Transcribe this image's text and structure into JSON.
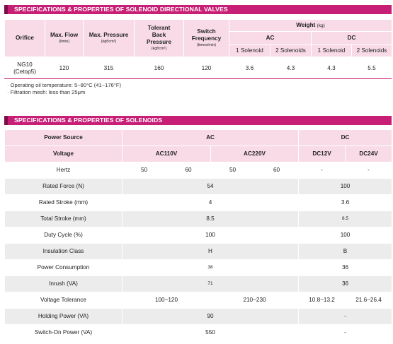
{
  "section1": {
    "title": "SPECIFICATIONS & PROPERTIES OF SOLENOID DIRECTIONAL VALVES",
    "headers": {
      "orifice": "Orifice",
      "max_flow": "Max. Flow",
      "max_flow_unit": "(l/min)",
      "max_pressure": "Max. Pressure",
      "max_pressure_unit": "(kgf/cm²)",
      "tolerant_back_pressure": "Tolerant Back Pressure",
      "tolerant_back_pressure_unit": "(kgf/cm²)",
      "switch_frequency": "Switch Frequency",
      "switch_frequency_unit": "(times/min)",
      "weight": "Weight",
      "weight_unit": "(kg)",
      "ac": "AC",
      "dc": "DC",
      "one_solenoid": "1 Solenoid",
      "two_solenoids": "2 Solenoids"
    },
    "row": {
      "orifice": "NG10\n(Cetop5)",
      "max_flow": "120",
      "max_pressure": "315",
      "tolerant_back_pressure": "160",
      "switch_frequency": "120",
      "ac_1": "3.6",
      "ac_2": "4.3",
      "dc_1": "4.3",
      "dc_2": "5.5"
    },
    "notes": [
      "· Operating oil temperature: 5~80°C (41~176°F)",
      "· Filtration mesh: less than 25μm"
    ]
  },
  "section2": {
    "title": "SPECIFICATIONS & PROPERTIES OF SOLENOIDS",
    "header_power_source": "Power Source",
    "header_ac": "AC",
    "header_dc": "DC",
    "header_voltage": "Voltage",
    "v_ac110": "AC110V",
    "v_ac220": "AC220V",
    "v_dc12": "DC12V",
    "v_dc24": "DC24V",
    "rows": [
      {
        "label": "Hertz",
        "a": "50",
        "b": "60",
        "c": "50",
        "d": "60",
        "e": "-",
        "f": "-"
      },
      {
        "label": "Rated Force (N)",
        "ac": "54",
        "dc": "100"
      },
      {
        "label": "Rated Stroke (mm)",
        "ac": "4",
        "dc": "3.6"
      },
      {
        "label": "Total Stroke (mm)",
        "ac": "8.5",
        "dc": "8.5"
      },
      {
        "label": "Duty Cycle (%)",
        "ac": "100",
        "dc": "100"
      },
      {
        "label": "Insulation Class",
        "ac": "H",
        "dc": "B"
      },
      {
        "label": "Power Consumption",
        "ac": "38",
        "dc": "36"
      },
      {
        "label": "Inrush (VA)",
        "ac": "71",
        "dc": "36"
      },
      {
        "label": "Voltage Tolerance",
        "ac110": "100~120",
        "ac220": "210~230",
        "dc12": "10.8~13.2",
        "dc24": "21.6~26.4"
      },
      {
        "label": "Holding Power (VA)",
        "ac": "90",
        "dc": "-"
      },
      {
        "label": "Switch-On Power (VA)",
        "ac": "550",
        "dc": "-"
      }
    ]
  }
}
